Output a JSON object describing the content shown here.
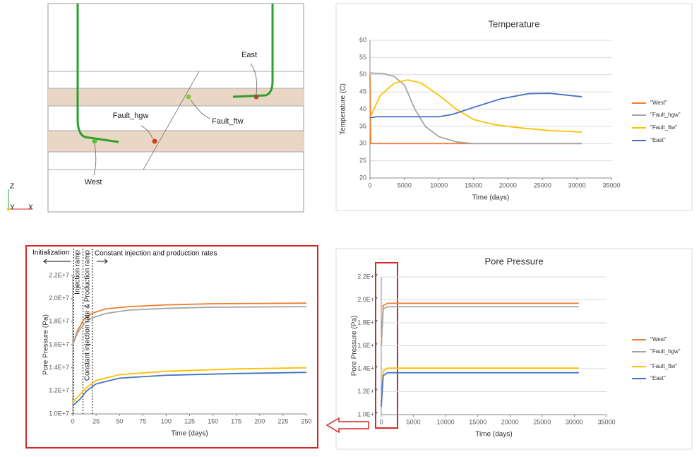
{
  "diagram": {
    "labels": [
      "East",
      "Fault_hgw",
      "Fault_ftw",
      "West"
    ],
    "axes": [
      "Z",
      "Y",
      "X"
    ]
  },
  "chart_data": [
    {
      "type": "line",
      "title": "Temperature",
      "x_label": "Time (days)",
      "y_label": "Temperature (C)",
      "xlim": [
        0,
        35000
      ],
      "xticks": [
        0,
        5000,
        10000,
        15000,
        20000,
        25000,
        30000,
        35000
      ],
      "ylim": [
        20,
        60
      ],
      "yticks": [
        20,
        25,
        30,
        35,
        40,
        45,
        50,
        55,
        60
      ],
      "grid": true,
      "legend": "right",
      "series": [
        {
          "name": "\"West\"",
          "color": "#ed7d31",
          "x": [
            0,
            100,
            30700
          ],
          "values": [
            50,
            30,
            30
          ]
        },
        {
          "name": "\"Fault_hgw\"",
          "color": "#a5a5a5",
          "x": [
            0,
            2000,
            3500,
            5000,
            6500,
            8000,
            10000,
            12500,
            15000,
            30700
          ],
          "values": [
            50.5,
            50.3,
            49.5,
            47,
            40,
            35,
            32,
            30.5,
            30,
            30
          ]
        },
        {
          "name": "\"Fault_ftw\"",
          "color": "#ffc000",
          "x": [
            0,
            1500,
            3500,
            5500,
            7500,
            10000,
            12500,
            15000,
            18000,
            22000,
            26000,
            30700
          ],
          "values": [
            37.5,
            44,
            47.5,
            48.5,
            47.5,
            44,
            40,
            37,
            35.5,
            34.5,
            33.8,
            33.3
          ]
        },
        {
          "name": "\"East\"",
          "color": "#4472c4",
          "x": [
            0,
            1000,
            10000,
            12000,
            15000,
            19000,
            23000,
            26000,
            30700
          ],
          "values": [
            37.5,
            37.8,
            37.8,
            38.5,
            40.5,
            43,
            44.5,
            44.6,
            43.6
          ]
        }
      ]
    },
    {
      "type": "line",
      "x_label": "Time (days)",
      "y_label": "Pore Pressure (Pa)",
      "xlim": [
        0,
        250
      ],
      "xticks": [
        0,
        25,
        50,
        75,
        100,
        125,
        150,
        175,
        200,
        225,
        250
      ],
      "ylim": [
        10000000,
        22000000
      ],
      "yticks": [
        {
          "value": 10000000,
          "label": "1.0E+7"
        },
        {
          "value": 12000000,
          "label": "1.2E+7"
        },
        {
          "value": 14000000,
          "label": "1.4E+7"
        },
        {
          "value": 16000000,
          "label": "1.6E+7"
        },
        {
          "value": 18000000,
          "label": "1.8E+7"
        },
        {
          "value": 20000000,
          "label": "2.0E+7"
        },
        {
          "value": 22000000,
          "label": "2.2E+7"
        }
      ],
      "grid": false,
      "vlines": [
        1,
        11,
        21
      ],
      "annotations": [
        "Initialization",
        "Injection ramp",
        "Constant injection rate & Production ramp",
        "Constant injection and production rates"
      ],
      "series": [
        {
          "name": "\"West\"",
          "color": "#ed7d31",
          "x": [
            0,
            5,
            12,
            20,
            35,
            60,
            100,
            150,
            250
          ],
          "values": [
            16000000,
            17200000,
            18200000,
            18700000,
            19100000,
            19300000,
            19450000,
            19550000,
            19600000
          ]
        },
        {
          "name": "\"Fault_hgw\"",
          "color": "#a5a5a5",
          "x": [
            0,
            5,
            12,
            20,
            35,
            60,
            100,
            150,
            250
          ],
          "values": [
            16000000,
            17000000,
            17800000,
            18300000,
            18700000,
            19000000,
            19150000,
            19250000,
            19300000
          ]
        },
        {
          "name": "\"Fault_ftw\"",
          "color": "#ffc000",
          "x": [
            0,
            8,
            15,
            25,
            50,
            100,
            175,
            250
          ],
          "values": [
            11000000,
            11700000,
            12300000,
            12900000,
            13400000,
            13700000,
            13900000,
            14000000
          ]
        },
        {
          "name": "\"East\"",
          "color": "#4472c4",
          "x": [
            0,
            8,
            15,
            25,
            50,
            100,
            175,
            250
          ],
          "values": [
            10700000,
            11300000,
            12000000,
            12600000,
            13100000,
            13350000,
            13500000,
            13600000
          ]
        }
      ]
    },
    {
      "type": "line",
      "title": "Pore Pressure",
      "x_label": "Time (days)",
      "y_label": "Pore Pressure (Pa)",
      "xlim": [
        0,
        35000
      ],
      "xticks": [
        0,
        5000,
        10000,
        15000,
        20000,
        25000,
        30000,
        35000
      ],
      "ylim": [
        10000000,
        22000000
      ],
      "yticks": [
        {
          "value": 10000000,
          "label": "1.0E+7"
        },
        {
          "value": 12000000,
          "label": "1.2E+7"
        },
        {
          "value": 14000000,
          "label": "1.4E+7"
        },
        {
          "value": 16000000,
          "label": "1.6E+7"
        },
        {
          "value": 18000000,
          "label": "1.8E+7"
        },
        {
          "value": 20000000,
          "label": "2.0E+7"
        },
        {
          "value": 22000000,
          "label": "2.2E+7"
        }
      ],
      "grid": true,
      "legend": "right",
      "series": [
        {
          "name": "\"West\"",
          "color": "#ed7d31",
          "x": [
            0,
            300,
            1000,
            30700
          ],
          "values": [
            16000000,
            19500000,
            19700000,
            19700000
          ]
        },
        {
          "name": "\"Fault_hgw\"",
          "color": "#a5a5a5",
          "x": [
            0,
            300,
            1000,
            30700
          ],
          "values": [
            16000000,
            19200000,
            19400000,
            19400000
          ]
        },
        {
          "name": "\"Fault_ftw\"",
          "color": "#ffc000",
          "x": [
            0,
            300,
            1000,
            30700
          ],
          "values": [
            11000000,
            13800000,
            14050000,
            14050000
          ]
        },
        {
          "name": "\"East\"",
          "color": "#4472c4",
          "x": [
            0,
            300,
            1000,
            30700
          ],
          "values": [
            10700000,
            13400000,
            13650000,
            13650000
          ]
        }
      ]
    }
  ]
}
